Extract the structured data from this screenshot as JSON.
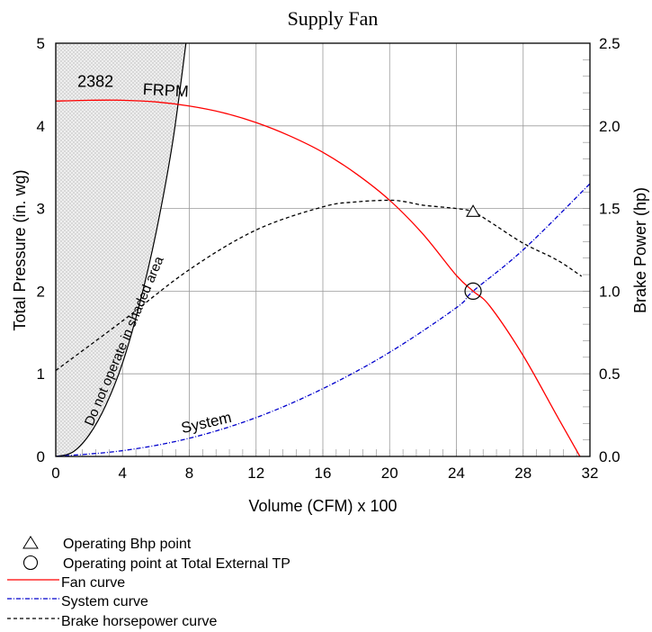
{
  "chart_data": {
    "type": "line",
    "title": "Supply Fan",
    "xlabel": "Volume (CFM) x 100",
    "ylabel_left": "Total Pressure (in. wg)",
    "ylabel_right": "Brake Power (hp)",
    "xlim": [
      0,
      32
    ],
    "ylim_left": [
      0,
      5
    ],
    "ylim_right": [
      0,
      2.5
    ],
    "x_ticks": [
      "0",
      "4",
      "8",
      "12",
      "16",
      "20",
      "24",
      "28",
      "32"
    ],
    "y_left_ticks": [
      "0",
      "1",
      "2",
      "3",
      "4",
      "5"
    ],
    "y_right_ticks": [
      "0.0",
      "0.5",
      "1.0",
      "1.5",
      "2.0",
      "2.5"
    ],
    "grid": true,
    "annotations": {
      "rpm": "2382",
      "rpm_unit": "FRPM",
      "system": "System",
      "shaded": "Do not operate in shaded area"
    },
    "series": [
      {
        "name": "Fan curve",
        "axis": "left",
        "color": "#ff0000",
        "style": "solid",
        "x": [
          0,
          2,
          4,
          6,
          8,
          10,
          12,
          14,
          16,
          18,
          20,
          22,
          24,
          25,
          26,
          28,
          30,
          31.4
        ],
        "y": [
          4.3,
          4.31,
          4.31,
          4.29,
          4.24,
          4.16,
          4.04,
          3.88,
          3.68,
          3.42,
          3.1,
          2.69,
          2.19,
          2.0,
          1.82,
          1.22,
          0.5,
          0.0
        ]
      },
      {
        "name": "System curve",
        "axis": "left",
        "color": "#0000cc",
        "style": "dash-dot",
        "x": [
          0,
          4,
          8,
          12,
          16,
          20,
          24,
          25,
          28,
          32
        ],
        "y": [
          0.0,
          0.07,
          0.22,
          0.47,
          0.82,
          1.26,
          1.8,
          2.0,
          2.5,
          3.3
        ]
      },
      {
        "name": "Brake horsepower curve",
        "axis": "right",
        "color": "#000000",
        "style": "dashed",
        "x": [
          0,
          4,
          8,
          12,
          16,
          18,
          20,
          21,
          22,
          24,
          25,
          26,
          28,
          30,
          31.5
        ],
        "y": [
          0.52,
          0.82,
          1.13,
          1.37,
          1.51,
          1.54,
          1.55,
          1.54,
          1.52,
          1.5,
          1.48,
          1.42,
          1.29,
          1.19,
          1.09
        ]
      }
    ],
    "shaded_boundary": {
      "x": [
        0,
        1,
        2,
        3,
        4,
        5,
        6,
        7,
        7.8
      ],
      "y": [
        0.0,
        0.05,
        0.26,
        0.62,
        1.13,
        1.83,
        2.7,
        3.8,
        5.0
      ]
    },
    "operating_points": {
      "bhp_point": {
        "x": 25,
        "y": 1.48,
        "axis": "right"
      },
      "tp_point": {
        "x": 25,
        "y": 2.0,
        "axis": "left"
      }
    },
    "legend": [
      {
        "marker": "triangle",
        "label": "Operating Bhp point"
      },
      {
        "marker": "circle",
        "label": "Operating point at Total External TP"
      },
      {
        "marker": "line-red",
        "label": "Fan curve"
      },
      {
        "marker": "line-blue-dashdot",
        "label": "System curve"
      },
      {
        "marker": "line-black-dashed",
        "label": "Brake horsepower curve"
      }
    ],
    "legend_position": "bottom-left"
  }
}
